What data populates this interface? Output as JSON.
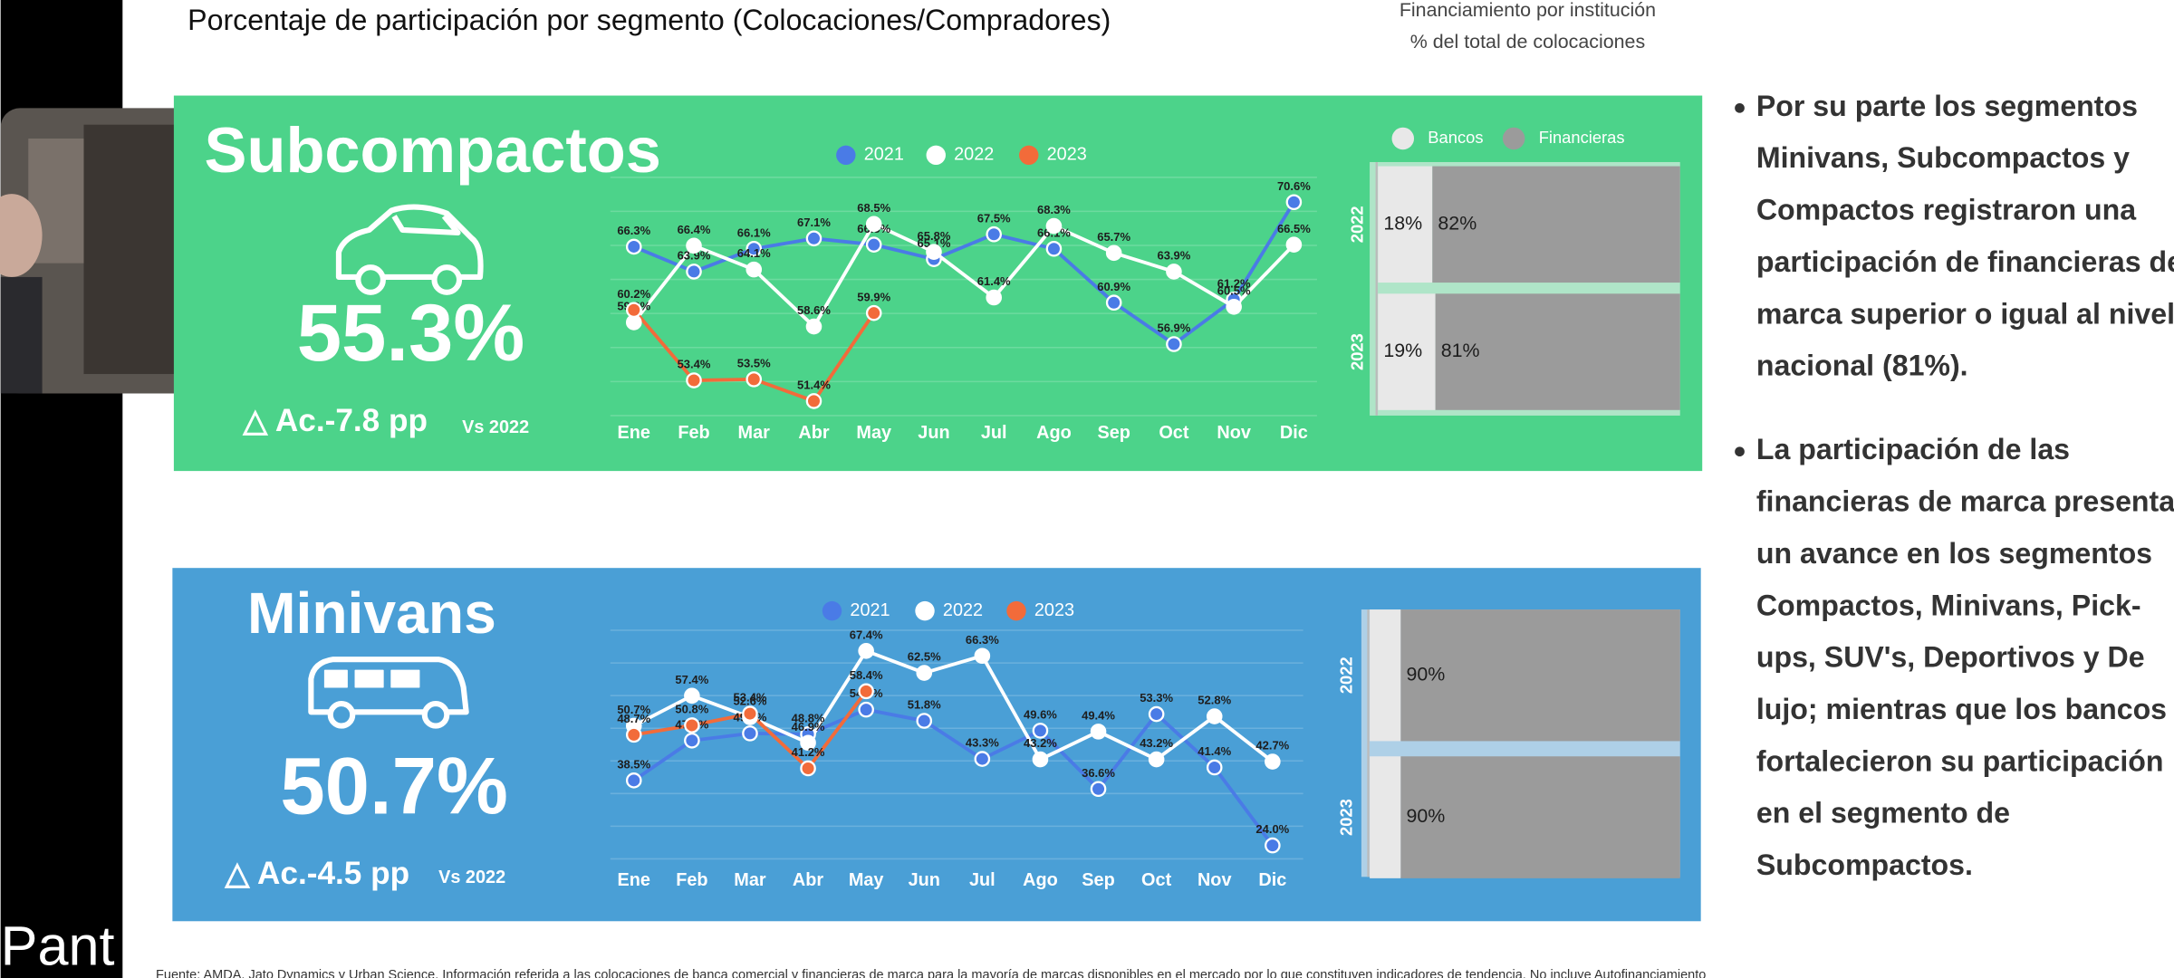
{
  "top_title": "Porcentaje de participación por segmento (Colocaciones/Compradores)",
  "financing_header": [
    "Financiamiento por institución",
    "% del total de colocaciones"
  ],
  "panels": [
    {
      "title": "Subcompactos",
      "share": "55.3%",
      "delta": "△ Ac.-7.8 pp",
      "delta_ref": "Vs 2022",
      "background": "#4cd38a",
      "line_chart": {
        "type": "line",
        "categories": [
          "Ene",
          "Feb",
          "Mar",
          "Abr",
          "May",
          "Jun",
          "Jul",
          "Ago",
          "Sep",
          "Oct",
          "Nov",
          "Dic"
        ],
        "ylim": [
          50,
          73
        ],
        "series": [
          {
            "name": "2021",
            "color": "#4a7be6",
            "values": [
              66.3,
              63.9,
              66.1,
              67.1,
              66.5,
              65.1,
              67.5,
              66.1,
              60.9,
              56.9,
              61.2,
              70.6
            ],
            "value_labels": [
              "66.3%",
              "63.9%",
              "66.1%",
              "67.1%",
              "66.5%",
              "65.1%",
              "67.5%",
              "66.1%",
              "60.9%",
              "56.9%",
              "61.2%",
              "70.6%"
            ]
          },
          {
            "name": "2022",
            "color": "#ffffff",
            "values": [
              59.0,
              66.4,
              64.1,
              58.6,
              68.5,
              65.8,
              61.4,
              68.3,
              65.7,
              63.9,
              60.5,
              66.5
            ],
            "value_labels": [
              "59.0%",
              "66.4%",
              "64.1%",
              "58.6%",
              "68.5%",
              "65.8%",
              "61.4%",
              "68.3%",
              "65.7%",
              "63.9%",
              "60.5%",
              "66.5%"
            ]
          },
          {
            "name": "2023",
            "color": "#f26b3a",
            "values": [
              60.2,
              53.4,
              53.5,
              51.4,
              59.9,
              null,
              null,
              null,
              null,
              null,
              null,
              null
            ],
            "value_labels": [
              "60.2%",
              "53.4%",
              "53.5%",
              "51.4%",
              "59.9%",
              null,
              null,
              null,
              null,
              null,
              null,
              null
            ]
          }
        ]
      },
      "bar_chart": {
        "type": "bar",
        "legend": [
          "Bancos",
          "Financieras"
        ],
        "colors": [
          "#e8e8e8",
          "#9b9b9b"
        ],
        "xlim": [
          0,
          100
        ],
        "rows": [
          {
            "year": "2022",
            "values": [
              18,
              82
            ],
            "value_labels": [
              "18%",
              "82%"
            ]
          },
          {
            "year": "2023",
            "values": [
              19,
              81
            ],
            "value_labels": [
              "19%",
              "81%"
            ]
          }
        ]
      }
    },
    {
      "title": "Minivans",
      "share": "50.7%",
      "delta": "△ Ac.-4.5 pp",
      "delta_ref": "Vs 2022",
      "background": "#4a9fd6",
      "line_chart": {
        "type": "line",
        "categories": [
          "Ene",
          "Feb",
          "Mar",
          "Abr",
          "May",
          "Jun",
          "Jul",
          "Ago",
          "Sep",
          "Oct",
          "Nov",
          "Dic"
        ],
        "ylim": [
          21,
          72
        ],
        "series": [
          {
            "name": "2021",
            "color": "#4a7be6",
            "values": [
              38.5,
              47.4,
              49.0,
              48.8,
              54.3,
              51.8,
              43.3,
              49.6,
              36.6,
              53.3,
              41.4,
              24.0
            ],
            "value_labels": [
              "38.5%",
              "47.4%",
              "49.0%",
              "48.8%",
              "54.3%",
              "51.8%",
              "43.3%",
              "49.6%",
              "36.6%",
              "53.3%",
              "41.4%",
              "24.0%"
            ]
          },
          {
            "name": "2022",
            "color": "#ffffff",
            "values": [
              50.7,
              57.4,
              52.6,
              46.9,
              67.4,
              62.5,
              66.3,
              43.2,
              49.4,
              43.2,
              52.8,
              42.7
            ],
            "value_labels": [
              "50.7%",
              "57.4%",
              "52.6%",
              "46.9%",
              "67.4%",
              "62.5%",
              "66.3%",
              "43.2%",
              "49.4%",
              "43.2%",
              "52.8%",
              "42.7%"
            ]
          },
          {
            "name": "2023",
            "color": "#f26b3a",
            "values": [
              48.7,
              50.8,
              53.4,
              41.2,
              58.4,
              null,
              null,
              null,
              null,
              null,
              null,
              null
            ],
            "value_labels": [
              "48.7%",
              "50.8%",
              "53.4%",
              "41.2%",
              "58.4%",
              null,
              null,
              null,
              null,
              null,
              null,
              null
            ]
          }
        ]
      },
      "bar_chart": {
        "type": "bar",
        "colors": [
          "#e8e8e8",
          "#9b9b9b"
        ],
        "xlim": [
          0,
          100
        ],
        "rows": [
          {
            "year": "2022",
            "values": [
              10,
              90
            ],
            "value_labels": [
              null,
              "90%"
            ]
          },
          {
            "year": "2023",
            "values": [
              10,
              90
            ],
            "value_labels": [
              null,
              "90%"
            ]
          }
        ]
      }
    }
  ],
  "bullets": [
    [
      "Por su parte los segmentos",
      "Minivans, Subcompactos y",
      "Compactos registraron una",
      "participación de financieras de",
      "marca superior o igual al nivel",
      "nacional (81%)."
    ],
    [
      "La participación de las",
      "financieras de marca presenta",
      "un avance en los segmentos",
      "Compactos, Minivans, Pick-",
      "ups, SUV's, Deportivos y De",
      "lujo; mientras que los bancos",
      "fortalecieron su participación",
      "en el segmento de",
      "Subcompactos."
    ]
  ],
  "speaker_label": "Pant",
  "footer": "Fuente: AMDA, Jato Dynamics y Urban Science. Información referida a las colocaciones de banca comercial y financieras de marca para la mayoría de marcas disponibles en el mercado por lo que constituyen indicadores de tendencia. No incluye Autofinanciamiento"
}
